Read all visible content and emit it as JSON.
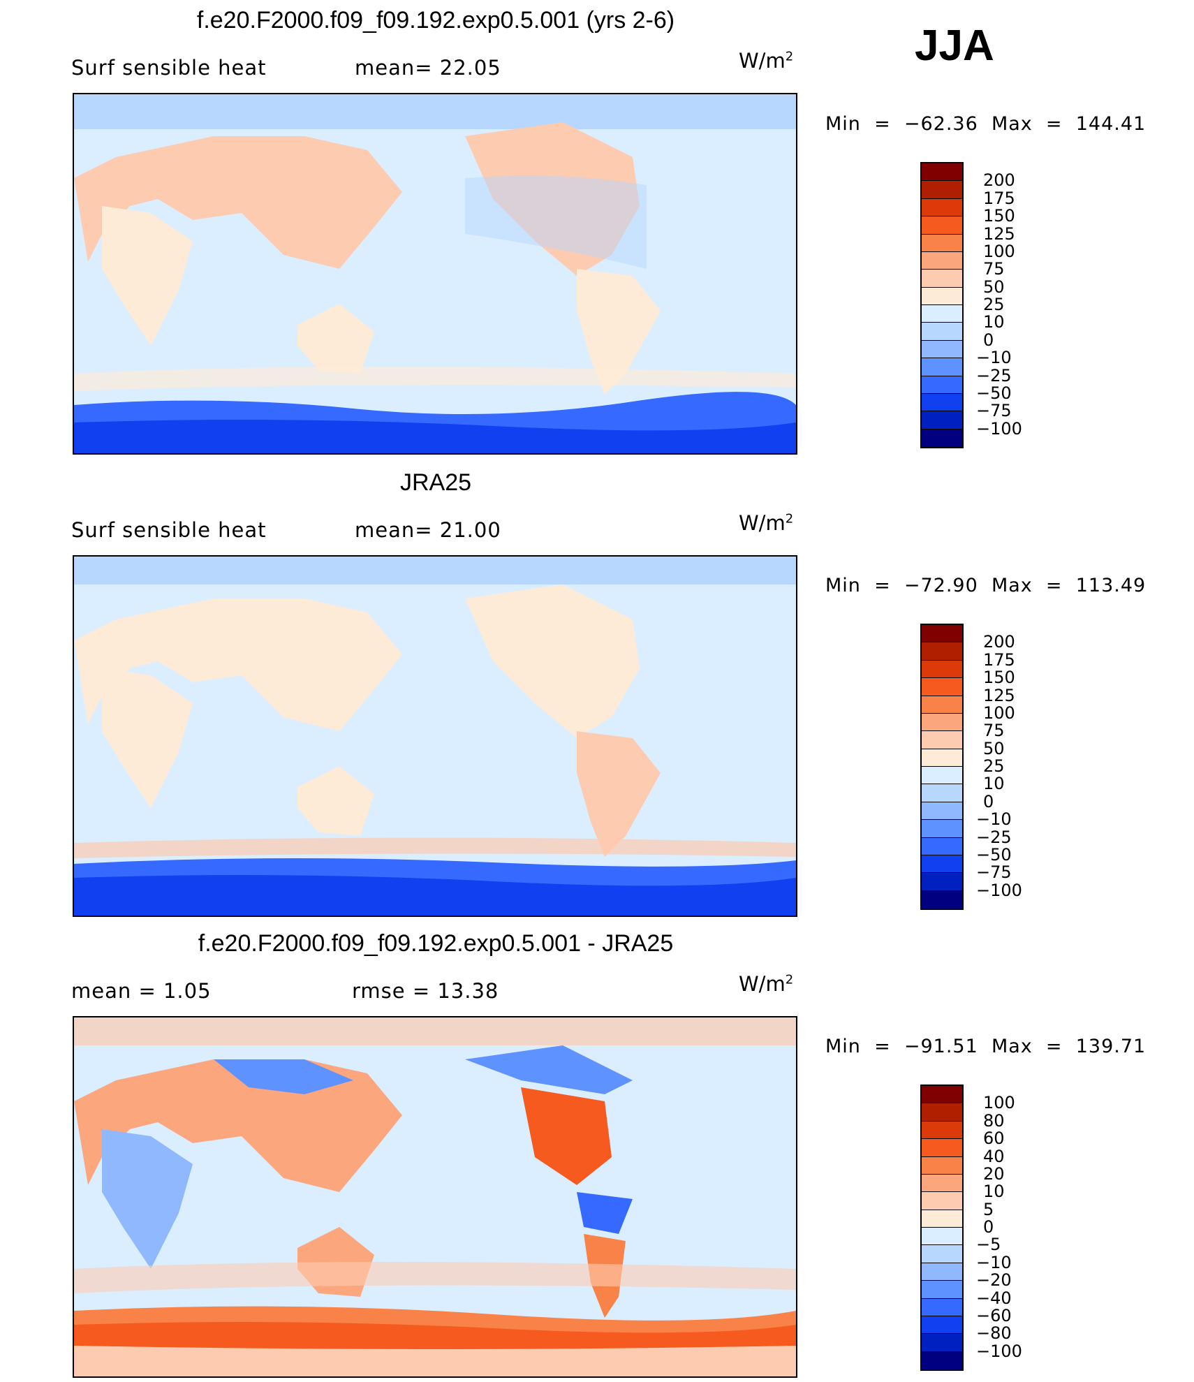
{
  "season": "JJA",
  "panels": [
    {
      "id": "model",
      "title": "f.e20.F2000.f09_f09.192.exp0.5.001 (yrs 2-6)",
      "left_text": "Surf  sensible  heat",
      "stat_text": "mean=   22.05",
      "units_base": "W/m",
      "units_sup": "2",
      "minmax": "Min  =  −62.36  Max  =  144.41",
      "colorbar": {
        "colors": [
          "#800000",
          "#b02000",
          "#dd3a0a",
          "#f75a1e",
          "#f98248",
          "#fca67e",
          "#fdcbb0",
          "#fdebd8",
          "#dbeeff",
          "#b7d7ff",
          "#8fb8ff",
          "#5e92ff",
          "#3569ff",
          "#1040f0",
          "#0020c0",
          "#000080"
        ],
        "labels": [
          "200",
          "175",
          "150",
          "125",
          "100",
          "75",
          "50",
          "25",
          "10",
          "0",
          "−10",
          "−25",
          "−50",
          "−75",
          "−100"
        ]
      }
    },
    {
      "id": "obs",
      "title": "JRA25",
      "left_text": "Surf  sensible  heat",
      "stat_text": "mean=   21.00",
      "units_base": "W/m",
      "units_sup": "2",
      "minmax": "Min  =  −72.90  Max  =  113.49",
      "colorbar": {
        "colors": [
          "#800000",
          "#b02000",
          "#dd3a0a",
          "#f75a1e",
          "#f98248",
          "#fca67e",
          "#fdcbb0",
          "#fdebd8",
          "#dbeeff",
          "#b7d7ff",
          "#8fb8ff",
          "#5e92ff",
          "#3569ff",
          "#1040f0",
          "#0020c0",
          "#000080"
        ],
        "labels": [
          "200",
          "175",
          "150",
          "125",
          "100",
          "75",
          "50",
          "25",
          "10",
          "0",
          "−10",
          "−25",
          "−50",
          "−75",
          "−100"
        ]
      }
    },
    {
      "id": "diff",
      "title": "f.e20.F2000.f09_f09.192.exp0.5.001 - JRA25",
      "left_text": "mean  =     1.05",
      "stat_text": "rmse  =    13.38",
      "units_base": "W/m",
      "units_sup": "2",
      "minmax": "Min  =  −91.51  Max  =  139.71",
      "colorbar": {
        "colors": [
          "#800000",
          "#b02000",
          "#dd3a0a",
          "#f75a1e",
          "#f98248",
          "#fca67e",
          "#fdcbb0",
          "#fdebd8",
          "#dbeeff",
          "#b7d7ff",
          "#8fb8ff",
          "#5e92ff",
          "#3569ff",
          "#1040f0",
          "#0020c0",
          "#000080"
        ],
        "labels": [
          "100",
          "80",
          "60",
          "40",
          "20",
          "10",
          "5",
          "0",
          "−5",
          "−10",
          "−20",
          "−40",
          "−60",
          "−80",
          "−100"
        ]
      }
    }
  ]
}
